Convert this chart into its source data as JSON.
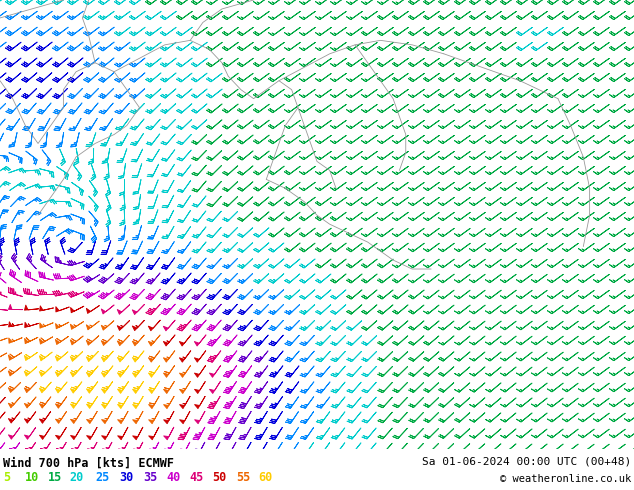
{
  "title_left": "Wind 700 hPa [kts] ECMWF",
  "title_right": "Sa 01-06-2024 00:00 UTC (00+48)",
  "copyright": "© weatheronline.co.uk",
  "legend_values": [
    5,
    10,
    15,
    20,
    25,
    30,
    35,
    40,
    45,
    50,
    55,
    60
  ],
  "legend_colors": [
    "#aaee00",
    "#44cc00",
    "#00aa44",
    "#00cccc",
    "#0088ff",
    "#0000dd",
    "#6600cc",
    "#cc00cc",
    "#dd0077",
    "#cc0000",
    "#ee6600",
    "#ffcc00"
  ],
  "map_bg": "#c8f080",
  "fig_bg": "#ffffff",
  "figsize": [
    6.34,
    4.9
  ],
  "dpi": 100,
  "speed_colors": {
    "5": "#aaee00",
    "10": "#44cc00",
    "15": "#00aa44",
    "20": "#00cccc",
    "25": "#0088ff",
    "30": "#0000dd",
    "35": "#6600cc",
    "40": "#cc00cc",
    "45": "#dd0077",
    "50": "#cc0000",
    "55": "#ee6600",
    "60": "#ffcc00"
  }
}
